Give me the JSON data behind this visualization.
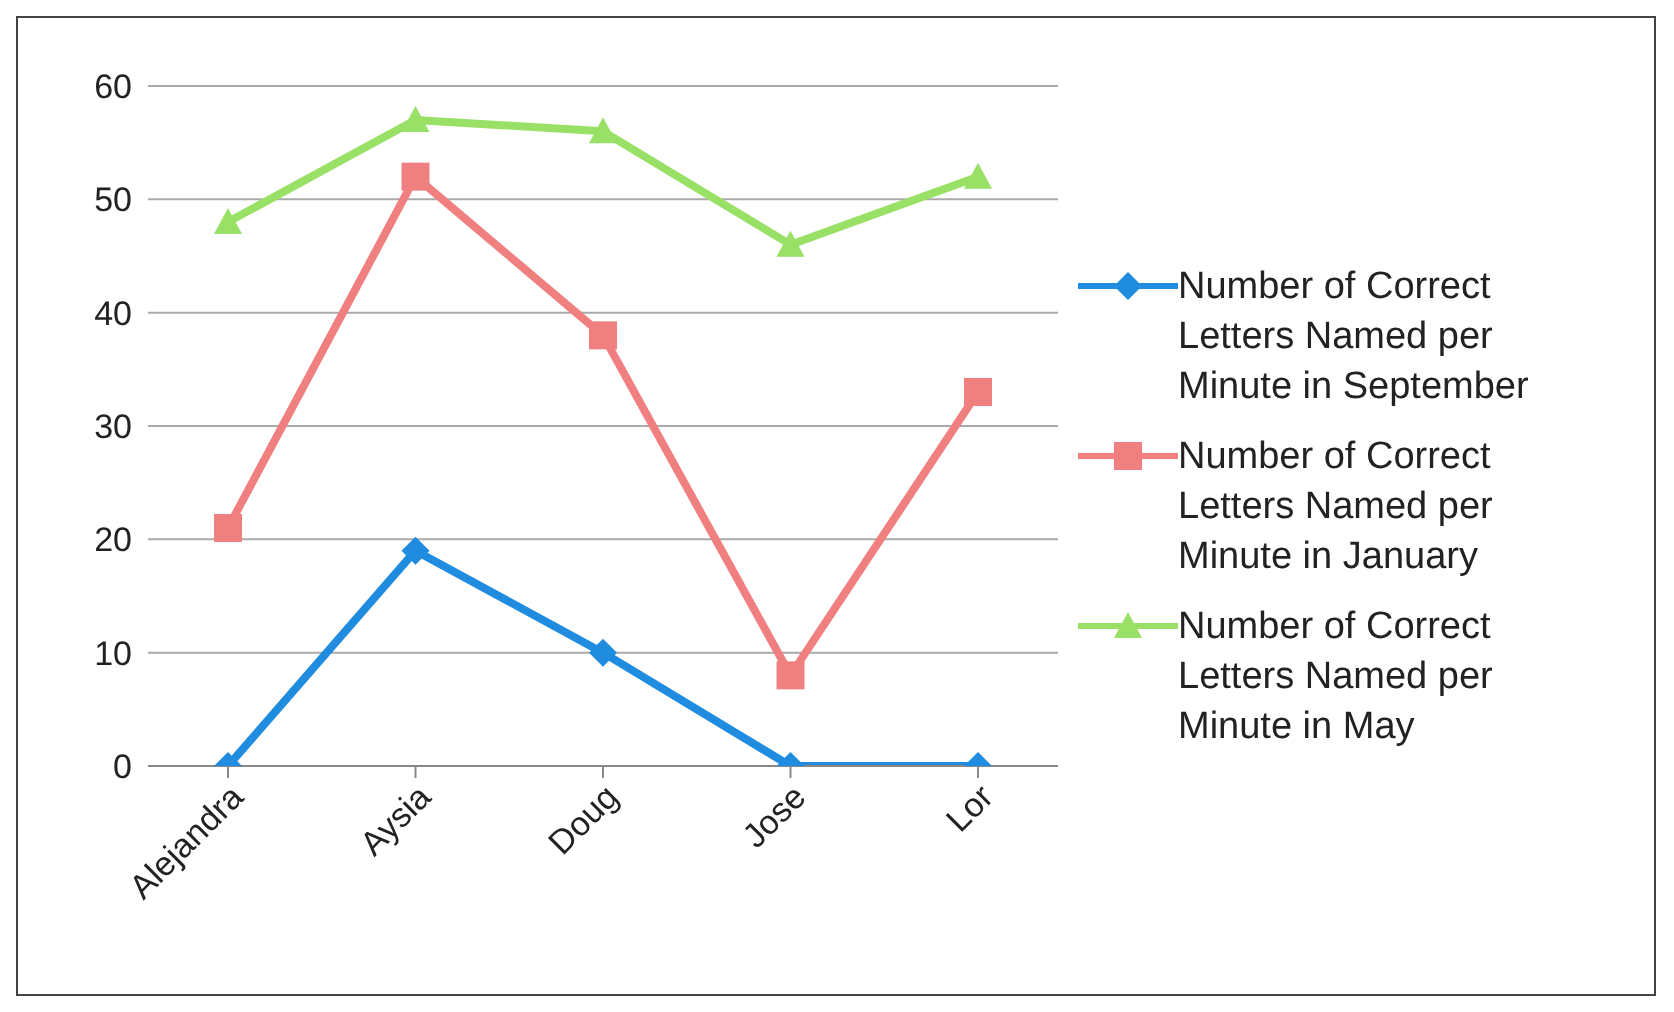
{
  "chart_data": {
    "type": "line",
    "categories": [
      "Alejandra",
      "Aysia",
      "Doug",
      "Jose",
      "Lor"
    ],
    "series": [
      {
        "name": "Number of Correct Letters Named per Minute in September",
        "color": "#1f8ce0",
        "marker": "diamond",
        "values": [
          0,
          19,
          10,
          0,
          0
        ]
      },
      {
        "name": "Number of Correct Letters Named per Minute in January",
        "color": "#f08080",
        "marker": "square",
        "values": [
          21,
          52,
          38,
          8,
          33
        ]
      },
      {
        "name": "Number of Correct Letters Named per Minute in May",
        "color": "#99e066",
        "marker": "triangle",
        "values": [
          48,
          57,
          56,
          46,
          52
        ]
      }
    ],
    "ylim": [
      0,
      60
    ],
    "yticks": [
      0,
      10,
      20,
      30,
      40,
      50,
      60
    ],
    "grid": "y",
    "legend": "right"
  }
}
